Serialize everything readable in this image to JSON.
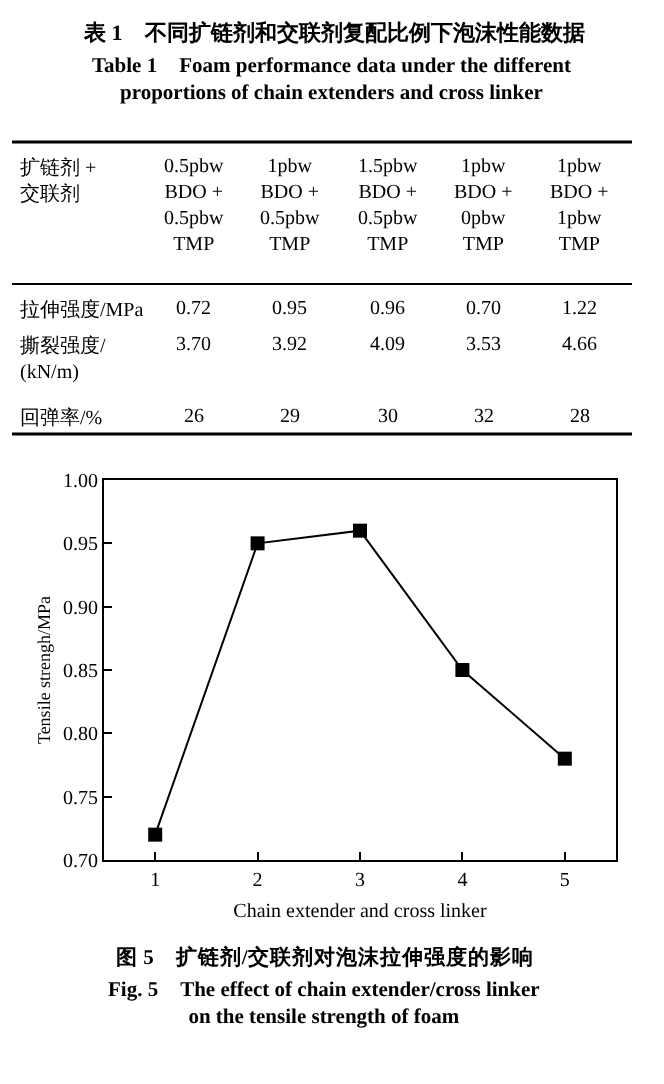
{
  "chart_data": [
    {
      "type": "other",
      "title": "表 1　不同扩链剂和交联剂复配比例下泡沫性能数据",
      "subtitle": "Table 1　Foam performance data under the different\nproportions of chain extenders and cross linker",
      "annotations": [
        "扩链剂 +\n交联剂",
        "0.5pbw\nBDO +\n0.5pbw\nTMP",
        "1pbw\nBDO +\n0.5pbw\nTMP",
        "1.5pbw\nBDO +\n0.5pbw\nTMP",
        "1pbw\nBDO +\n0pbw\nTMP",
        "1pbw\nBDO +\n1pbw\nTMP",
        "拉伸强度/MPa",
        "0.72",
        "0.95",
        "0.96",
        "0.70",
        "1.22",
        "撕裂强度/\n(kN/m)",
        "3.70",
        "3.92",
        "4.09",
        "3.53",
        "4.66",
        "回弹率/%",
        "26",
        "29",
        "30",
        "32",
        "28"
      ]
    },
    {
      "type": "line",
      "title": "图 5　扩链剂/交联剂对泡沫拉伸强度的影响",
      "subtitle": "Fig. 5　The effect of chain extender/cross linker\non the tensile strength of foam",
      "xlabel": "Chain extender and cross linker",
      "ylabel": "Tensile strengh/MPa",
      "x": [
        1,
        2,
        3,
        4,
        5
      ],
      "values": [
        0.72,
        0.95,
        0.96,
        0.85,
        0.78
      ],
      "color": "#000000",
      "xlim": [
        0.5,
        5.5
      ],
      "xticks": [
        1,
        2,
        3,
        4,
        5
      ],
      "ylim": [
        0.7,
        1.0
      ],
      "yticks": [
        {
          "value": 0.7,
          "label": "0.70"
        },
        {
          "value": 0.75,
          "label": "0.75"
        },
        {
          "value": 0.8,
          "label": "0.80"
        },
        {
          "value": 0.85,
          "label": "0.85"
        },
        {
          "value": 0.9,
          "label": "0.90"
        },
        {
          "value": 0.95,
          "label": "0.95"
        },
        {
          "value": 1.0,
          "label": "1.00"
        }
      ],
      "marker": "square",
      "line_style": "solid",
      "legend": false
    }
  ]
}
